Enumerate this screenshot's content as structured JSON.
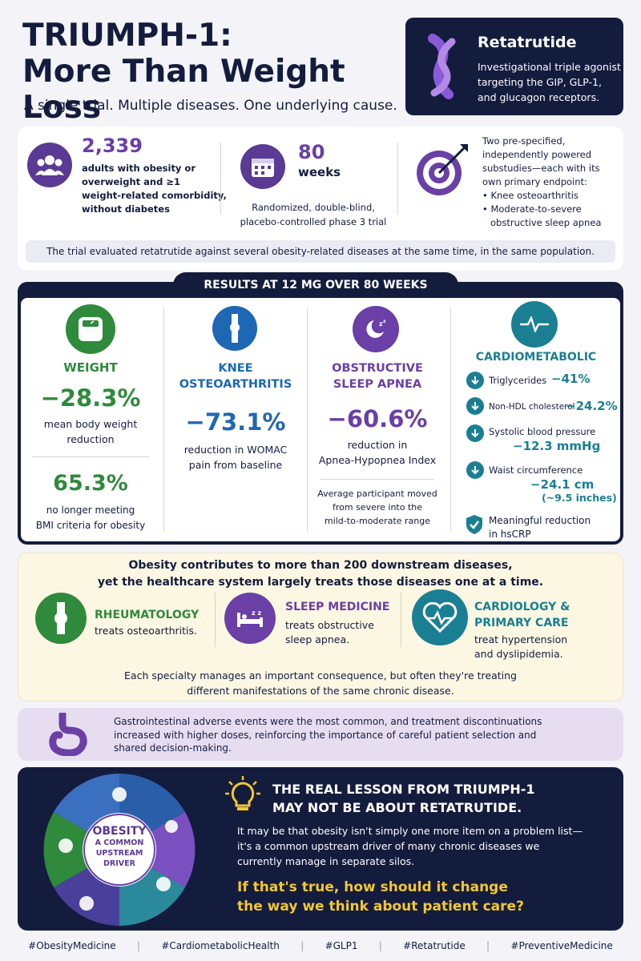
{
  "header": {
    "title_line1": "TRIUMPH-1:",
    "title_line2": "More Than Weight Loss",
    "subtitle": "A single trial. Multiple diseases. One underlying cause."
  },
  "drug": {
    "name": "Retatrutide",
    "desc_line1": "Investigational triple agonist",
    "desc_line2": "targeting the GIP, GLP-1,",
    "desc_line3": "and glucagon receptors."
  },
  "trial": {
    "participants_value": "2,339",
    "participants_l1": "adults with obesity or",
    "participants_l2": "overweight and ≥1",
    "participants_l3": "weight-related comorbidity,",
    "participants_l4": "without diabetes",
    "weeks_value": "80",
    "weeks_unit": "weeks",
    "design_l1": "Randomized, double-blind,",
    "design_l2": "placebo-controlled phase 3 trial",
    "sub_l1": "Two pre-specified,",
    "sub_l2": "independently powered",
    "sub_l3": "substudies—each with its",
    "sub_l4": "own primary endpoint:",
    "endpoint1": "Knee osteoarthritis",
    "endpoint2_l1": "Moderate-to-severe",
    "endpoint2_l2": "obstructive sleep apnea",
    "note": "The trial evaluated retatrutide against several obesity-related diseases at the same time, in the same population."
  },
  "results": {
    "banner": "RESULTS AT 12 MG OVER 80 WEEKS",
    "weight": {
      "heading": "WEIGHT",
      "value1": "−28.3%",
      "desc1_l1": "mean body weight",
      "desc1_l2": "reduction",
      "value2": "65.3%",
      "desc2_l1": "no longer meeting",
      "desc2_l2": "BMI criteria for obesity"
    },
    "knee": {
      "heading_l1": "KNEE",
      "heading_l2": "OSTEOARTHRITIS",
      "value": "−73.1%",
      "desc_l1": "reduction in WOMAC",
      "desc_l2": "pain from baseline"
    },
    "osa": {
      "heading_l1": "OBSTRUCTIVE",
      "heading_l2": "SLEEP APNEA",
      "value": "−60.6%",
      "desc_l1": "reduction in",
      "desc_l2": "Apnea-Hypopnea Index",
      "note_l1": "Average participant moved",
      "note_l2": "from severe into the",
      "note_l3": "mild-to-moderate range"
    },
    "cardio": {
      "heading": "CARDIOMETABOLIC",
      "items": [
        {
          "label": "Triglycerides",
          "value": "−41%"
        },
        {
          "label": "Non-HDL cholesterol",
          "value": "−24.2%"
        },
        {
          "label": "Systolic blood pressure",
          "value": "−12.3 mmHg"
        },
        {
          "label": "Waist circumference",
          "value": "−24.1 cm",
          "extra": "(~9.5 inches)"
        }
      ],
      "hscrp_l1": "Meaningful reduction",
      "hscrp_l2": "in hsCRP"
    }
  },
  "specialties": {
    "intro_l1": "Obesity contributes to more than 200 downstream diseases,",
    "intro_l2": "yet the healthcare system largely treats those diseases one at a time.",
    "rheum_title": "RHEUMATOLOGY",
    "rheum_desc": "treats osteoarthritis.",
    "sleep_title": "SLEEP MEDICINE",
    "sleep_desc_l1": "treats obstructive",
    "sleep_desc_l2": "sleep apnea.",
    "cardio_title_l1": "CARDIOLOGY &",
    "cardio_title_l2": "PRIMARY CARE",
    "cardio_desc_l1": "treat hypertension",
    "cardio_desc_l2": "and dyslipidemia.",
    "outro_l1": "Each specialty manages an important consequence, but often they're treating",
    "outro_l2": "different manifestations of the same chronic disease."
  },
  "gi": {
    "l1": "Gastrointestinal adverse events were the most common, and treatment discontinuations",
    "l2": "increased with higher doses, reinforcing the importance of careful patient selection and",
    "l3": "shared decision-making."
  },
  "lesson": {
    "puzzle_l1": "OBESITY",
    "puzzle_l2": "A COMMON",
    "puzzle_l3": "UPSTREAM",
    "puzzle_l4": "DRIVER",
    "title_l1": "THE REAL LESSON FROM TRIUMPH-1",
    "title_l2": "MAY NOT BE ABOUT RETATRUTIDE.",
    "body_l1": "It may be that obesity isn't simply one more item on a problem list—",
    "body_l2": "it's a common upstream driver of many chronic diseases we",
    "body_l3": "currently manage in separate silos.",
    "question_l1": "If that's true, how should it change",
    "question_l2": "the way we think about patient care?"
  },
  "hashtags": [
    "#ObesityMedicine",
    "#CardiometabolicHealth",
    "#GLP1",
    "#Retatrutide",
    "#PreventiveMedicine"
  ],
  "colors": {
    "navy": "#141c3e",
    "green": "#2f8a3c",
    "blue": "#1e67b5",
    "purple": "#6a3fa6",
    "teal": "#1b7f93",
    "yellow": "#f2c830"
  },
  "icons": [
    "people-icon",
    "calendar-icon",
    "target-icon",
    "scale-icon",
    "knee-joint-icon",
    "moon-sleep-icon",
    "heartbeat-icon",
    "arrow-down-icon",
    "shield-check-icon",
    "bed-sleep-icon",
    "heart-pulse-icon",
    "stomach-icon",
    "lightbulb-icon",
    "puzzle-icon"
  ]
}
